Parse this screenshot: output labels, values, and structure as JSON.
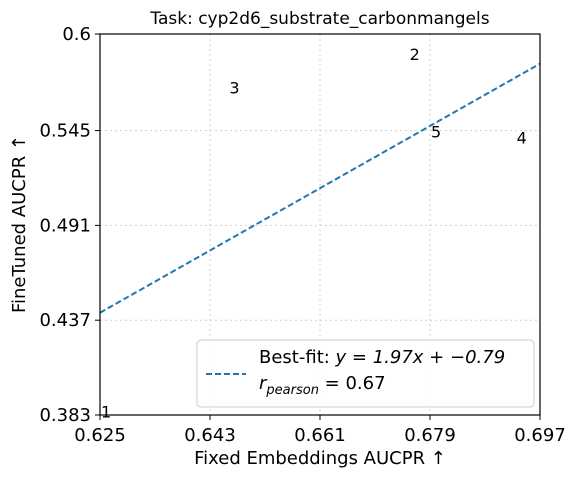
{
  "chart_data": {
    "type": "scatter",
    "title": "Task: cyp2d6_substrate_carbonmangels",
    "xlabel": "Fixed Embeddings AUCPR ↑",
    "ylabel": "FineTuned AUCPR ↑",
    "xlim": [
      0.625,
      0.697
    ],
    "ylim": [
      0.383,
      0.6
    ],
    "xticks": [
      "0.625",
      "0.643",
      "0.661",
      "0.679",
      "0.697"
    ],
    "yticks": [
      "0.383",
      "0.437",
      "0.491",
      "0.545",
      "0.6"
    ],
    "grid": true,
    "points": [
      {
        "label": "1",
        "x": 0.626,
        "y": 0.385
      },
      {
        "label": "2",
        "x": 0.6765,
        "y": 0.5885
      },
      {
        "label": "3",
        "x": 0.647,
        "y": 0.5695
      },
      {
        "label": "4",
        "x": 0.694,
        "y": 0.541
      },
      {
        "label": "5",
        "x": 0.68,
        "y": 0.5445
      }
    ],
    "fit_line": {
      "slope": 1.97,
      "intercept": -0.79,
      "color": "#1f77b4",
      "style": "dashed"
    },
    "legend": {
      "placement": "bottom-right",
      "line1_prefix": "Best-fit: ",
      "line1_formula": "y = 1.97x + −0.79",
      "line2_formula": "r",
      "line2_sub": "pearson",
      "line2_value": " = 0.67"
    }
  }
}
